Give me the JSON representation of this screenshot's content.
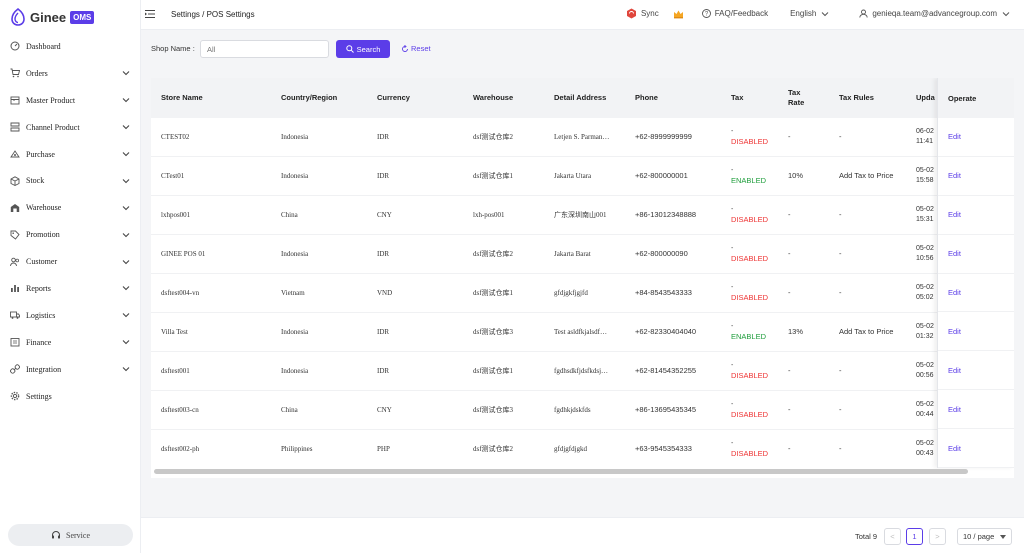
{
  "app": {
    "logo_text": "Ginee",
    "badge": "OMS"
  },
  "sidebar": {
    "items": [
      {
        "label": "Dashboard",
        "icon": "dashboard-icon",
        "chevron": false
      },
      {
        "label": "Orders",
        "icon": "cart-icon",
        "chevron": true
      },
      {
        "label": "Master Product",
        "icon": "box-icon",
        "chevron": true
      },
      {
        "label": "Channel Product",
        "icon": "channel-icon",
        "chevron": true
      },
      {
        "label": "Purchase",
        "icon": "purchase-icon",
        "chevron": true
      },
      {
        "label": "Stock",
        "icon": "cube-icon",
        "chevron": true
      },
      {
        "label": "Warehouse",
        "icon": "warehouse-icon",
        "chevron": true
      },
      {
        "label": "Promotion",
        "icon": "tag-icon",
        "chevron": true
      },
      {
        "label": "Customer",
        "icon": "users-icon",
        "chevron": true
      },
      {
        "label": "Reports",
        "icon": "chart-icon",
        "chevron": true
      },
      {
        "label": "Logistics",
        "icon": "truck-icon",
        "chevron": true
      },
      {
        "label": "Finance",
        "icon": "finance-icon",
        "chevron": true
      },
      {
        "label": "Integration",
        "icon": "link-icon",
        "chevron": true
      },
      {
        "label": "Settings",
        "icon": "gear-icon",
        "chevron": false
      }
    ],
    "service_label": "Service"
  },
  "header": {
    "breadcrumb": "Settings / POS Settings",
    "sync_label": "Sync",
    "faq_label": "FAQ/Feedback",
    "language": "English",
    "user_email": "genieqa.team@advancegroup.com"
  },
  "filter": {
    "shop_name_label": "Shop Name :",
    "shop_name_value": "All",
    "search_label": "Search",
    "reset_label": "Reset"
  },
  "table": {
    "columns": [
      "Store Name",
      "Country/Region",
      "Currency",
      "Warehouse",
      "Detail Address",
      "Phone",
      "Tax",
      "Tax\nRate",
      "Tax Rules",
      "Upda"
    ],
    "operate_header": "Operate",
    "edit_label": "Edit",
    "tax_prefix": "-",
    "rows": [
      {
        "store": "CTEST02",
        "country": "Indonesia",
        "currency": "IDR",
        "warehouse": "dsf测试仓库2",
        "address": "Letjen S. Parman…",
        "phone": "+62-8999999999",
        "tax": "DISABLED",
        "rate": "-",
        "rules": "-",
        "upd1": "06-02",
        "upd2": "11:41"
      },
      {
        "store": "CTest01",
        "country": "Indonesia",
        "currency": "IDR",
        "warehouse": "dsf测试仓库1",
        "address": "Jakarta Utara",
        "phone": "+62-800000001",
        "tax": "ENABLED",
        "rate": "10%",
        "rules": "Add Tax to Price",
        "upd1": "05-02",
        "upd2": "15:58"
      },
      {
        "store": "lxhpos001",
        "country": "China",
        "currency": "CNY",
        "warehouse": "lxh-pos001",
        "address": "广东深圳南山001",
        "phone": "+86-13012348888",
        "tax": "DISABLED",
        "rate": "-",
        "rules": "-",
        "upd1": "05-02",
        "upd2": "15:31"
      },
      {
        "store": "GINEE POS 01",
        "country": "Indonesia",
        "currency": "IDR",
        "warehouse": "dsf测试仓库2",
        "address": "Jakarta Barat",
        "phone": "+62-800000090",
        "tax": "DISABLED",
        "rate": "-",
        "rules": "-",
        "upd1": "05-02",
        "upd2": "10:56"
      },
      {
        "store": "dsftest004-vn",
        "country": "Vietnam",
        "currency": "VND",
        "warehouse": "dsf测试仓库1",
        "address": "gfdjgkfjgjfd",
        "phone": "+84-8543543333",
        "tax": "DISABLED",
        "rate": "-",
        "rules": "-",
        "upd1": "05-02",
        "upd2": "05:02"
      },
      {
        "store": "Villa Test",
        "country": "Indonesia",
        "currency": "IDR",
        "warehouse": "dsf测试仓库3",
        "address": "Test asldfkjalsdf…",
        "phone": "+62-82330404040",
        "tax": "ENABLED",
        "rate": "13%",
        "rules": "Add Tax to Price",
        "upd1": "05-02",
        "upd2": "01:32"
      },
      {
        "store": "dsftest001",
        "country": "Indonesia",
        "currency": "IDR",
        "warehouse": "dsf测试仓库1",
        "address": "fgdhsdkfjdsfkdsj…",
        "phone": "+62-81454352255",
        "tax": "DISABLED",
        "rate": "-",
        "rules": "-",
        "upd1": "05-02",
        "upd2": "00:56"
      },
      {
        "store": "dsftest003-cn",
        "country": "China",
        "currency": "CNY",
        "warehouse": "dsf测试仓库3",
        "address": "fgdhkjdskfds",
        "phone": "+86-13695435345",
        "tax": "DISABLED",
        "rate": "-",
        "rules": "-",
        "upd1": "05-02",
        "upd2": "00:44"
      },
      {
        "store": "dsftest002-ph",
        "country": "Philippines",
        "currency": "PHP",
        "warehouse": "dsf测试仓库2",
        "address": "gfdjgfdjgkd",
        "phone": "+63-9545354333",
        "tax": "DISABLED",
        "rate": "-",
        "rules": "-",
        "upd1": "05-02",
        "upd2": "00:43"
      }
    ]
  },
  "pagination": {
    "total_label": "Total 9",
    "current_page": "1",
    "prev": "<",
    "next": ">",
    "per_page": "10 / page"
  },
  "colors": {
    "accent": "#5b3de8",
    "enabled": "#1f9e3c",
    "disabled": "#e33333"
  }
}
